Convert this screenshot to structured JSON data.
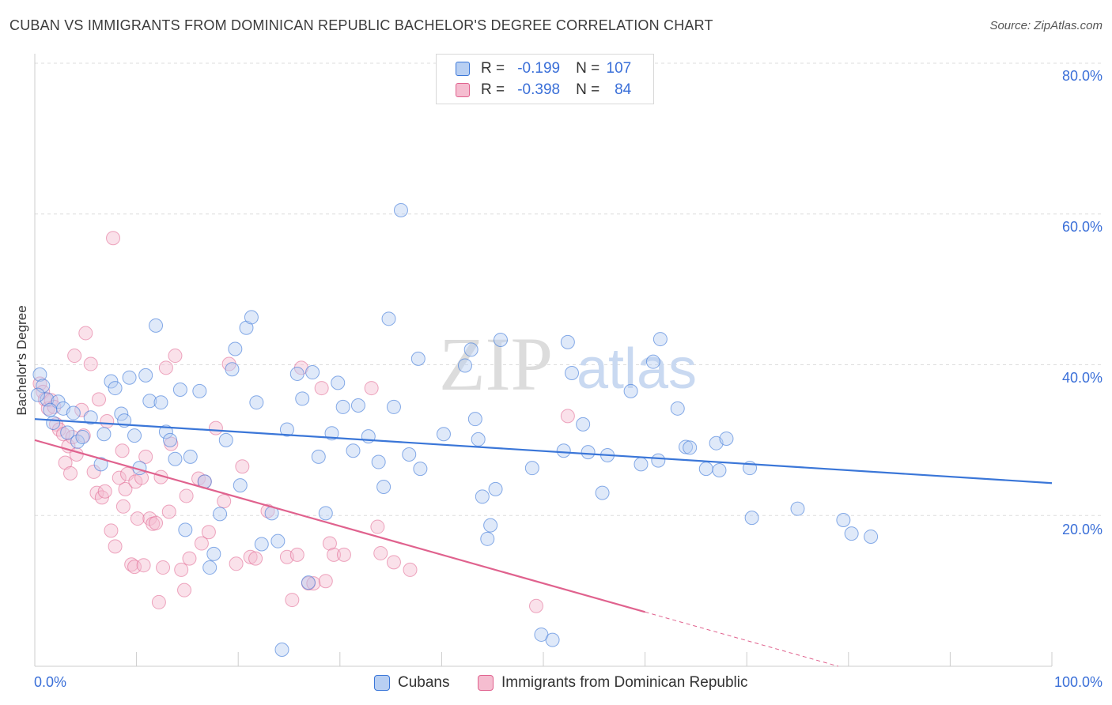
{
  "title": "CUBAN VS IMMIGRANTS FROM DOMINICAN REPUBLIC BACHELOR'S DEGREE CORRELATION CHART",
  "source": "Source: ZipAtlas.com",
  "watermark": {
    "zip": "ZIP",
    "atlas": "atlas"
  },
  "legend": {
    "r_label": "R =",
    "n_label": "N =",
    "series1": {
      "r": "-0.199",
      "n": "107"
    },
    "series2": {
      "r": "-0.398",
      "n": "84"
    }
  },
  "bottom_legend": {
    "series1": "Cubans",
    "series2": "Immigrants from Dominican Republic"
  },
  "colors": {
    "blue": "#3a76d8",
    "blue_fill": "#b8cff2",
    "pink": "#e0628e",
    "pink_fill": "#f5bdd0",
    "axis_text": "#3a6fd8"
  },
  "chart_data": {
    "type": "scatter",
    "title": "CUBAN VS IMMIGRANTS FROM DOMINICAN REPUBLIC BACHELOR'S DEGREE CORRELATION CHART",
    "xlabel": "",
    "ylabel": "Bachelor's Degree",
    "xlim": [
      0,
      100
    ],
    "ylim": [
      0,
      80
    ],
    "y_ticks": [
      {
        "value": 20,
        "label": "20.0%"
      },
      {
        "value": 40,
        "label": "40.0%"
      },
      {
        "value": 60,
        "label": "60.0%"
      },
      {
        "value": 80,
        "label": "80.0%"
      }
    ],
    "x_tick_labels": [
      {
        "value": 0,
        "label": "0.0%"
      },
      {
        "value": 100,
        "label": "100.0%"
      }
    ],
    "grid": true,
    "legend_position": "top-center",
    "series": [
      {
        "name": "Cubans",
        "r": -0.199,
        "n": 107,
        "trend": {
          "x": [
            0,
            100
          ],
          "y": [
            32.8,
            24.3
          ]
        },
        "points": [
          [
            0.5,
            38.7
          ],
          [
            0.8,
            37.2
          ],
          [
            1.2,
            35.4
          ],
          [
            1.8,
            32.3
          ],
          [
            2.3,
            35.1
          ],
          [
            2.8,
            34.2
          ],
          [
            3.2,
            31.0
          ],
          [
            3.8,
            33.6
          ],
          [
            4.2,
            29.8
          ],
          [
            4.7,
            30.4
          ],
          [
            5.5,
            33.0
          ],
          [
            6.5,
            26.8
          ],
          [
            6.8,
            30.8
          ],
          [
            7.5,
            37.8
          ],
          [
            7.9,
            36.9
          ],
          [
            8.5,
            33.5
          ],
          [
            8.8,
            32.6
          ],
          [
            9.3,
            38.3
          ],
          [
            9.8,
            30.6
          ],
          [
            10.3,
            26.3
          ],
          [
            10.9,
            38.6
          ],
          [
            11.3,
            35.2
          ],
          [
            11.9,
            45.2
          ],
          [
            12.4,
            35.0
          ],
          [
            12.9,
            31.1
          ],
          [
            13.3,
            30.0
          ],
          [
            13.8,
            27.5
          ],
          [
            14.3,
            36.7
          ],
          [
            14.8,
            18.1
          ],
          [
            15.3,
            27.8
          ],
          [
            16.2,
            36.5
          ],
          [
            16.7,
            24.5
          ],
          [
            17.2,
            13.1
          ],
          [
            17.6,
            14.9
          ],
          [
            18.2,
            20.2
          ],
          [
            18.8,
            30.0
          ],
          [
            19.4,
            39.4
          ],
          [
            19.7,
            42.1
          ],
          [
            20.2,
            24.0
          ],
          [
            20.8,
            44.9
          ],
          [
            21.3,
            46.3
          ],
          [
            21.8,
            35.0
          ],
          [
            22.3,
            16.2
          ],
          [
            23.3,
            20.3
          ],
          [
            23.9,
            16.6
          ],
          [
            24.3,
            2.2
          ],
          [
            24.8,
            31.4
          ],
          [
            25.8,
            38.8
          ],
          [
            26.3,
            35.5
          ],
          [
            26.9,
            11.1
          ],
          [
            27.3,
            39.0
          ],
          [
            27.9,
            27.8
          ],
          [
            28.6,
            20.3
          ],
          [
            29.2,
            30.9
          ],
          [
            29.8,
            37.6
          ],
          [
            30.3,
            34.4
          ],
          [
            31.3,
            28.6
          ],
          [
            31.8,
            34.6
          ],
          [
            32.8,
            30.5
          ],
          [
            33.8,
            27.1
          ],
          [
            34.3,
            23.8
          ],
          [
            34.8,
            46.1
          ],
          [
            35.3,
            34.4
          ],
          [
            36.0,
            60.5
          ],
          [
            36.8,
            28.1
          ],
          [
            37.7,
            40.8
          ],
          [
            37.9,
            26.2
          ],
          [
            40.2,
            30.8
          ],
          [
            42.3,
            39.9
          ],
          [
            42.9,
            42.0
          ],
          [
            43.3,
            32.8
          ],
          [
            43.6,
            30.1
          ],
          [
            44.0,
            22.5
          ],
          [
            44.5,
            16.9
          ],
          [
            44.8,
            18.7
          ],
          [
            45.3,
            23.5
          ],
          [
            45.8,
            43.3
          ],
          [
            48.9,
            26.3
          ],
          [
            49.8,
            4.2
          ],
          [
            50.9,
            3.5
          ],
          [
            52.0,
            28.6
          ],
          [
            52.4,
            43.0
          ],
          [
            52.8,
            38.9
          ],
          [
            53.9,
            32.1
          ],
          [
            54.4,
            28.4
          ],
          [
            55.8,
            23.0
          ],
          [
            56.3,
            28.0
          ],
          [
            58.6,
            36.5
          ],
          [
            59.6,
            26.8
          ],
          [
            60.8,
            40.4
          ],
          [
            61.3,
            27.3
          ],
          [
            61.5,
            43.4
          ],
          [
            63.2,
            34.2
          ],
          [
            64.0,
            29.1
          ],
          [
            64.4,
            29.0
          ],
          [
            66.0,
            26.2
          ],
          [
            67.0,
            29.6
          ],
          [
            67.3,
            26.0
          ],
          [
            68.0,
            30.2
          ],
          [
            70.3,
            26.3
          ],
          [
            70.5,
            19.7
          ],
          [
            75.0,
            20.9
          ],
          [
            79.5,
            19.4
          ],
          [
            80.3,
            17.6
          ],
          [
            82.2,
            17.2
          ],
          [
            0.3,
            36.0
          ],
          [
            1.5,
            34.0
          ]
        ]
      },
      {
        "name": "Immigrants from Dominican Republic",
        "r": -0.398,
        "n": 84,
        "trend": {
          "x": [
            0,
            60
          ],
          "y": [
            30.0,
            7.2
          ]
        },
        "trend_extension": {
          "x": [
            60,
            79
          ],
          "y": [
            7.2,
            0
          ]
        },
        "points": [
          [
            0.5,
            37.5
          ],
          [
            0.8,
            36.4
          ],
          [
            1.0,
            35.4
          ],
          [
            1.3,
            34.2
          ],
          [
            1.6,
            35.3
          ],
          [
            1.9,
            34.4
          ],
          [
            2.1,
            32.1
          ],
          [
            2.4,
            31.4
          ],
          [
            2.8,
            30.8
          ],
          [
            3.0,
            27.0
          ],
          [
            3.3,
            29.2
          ],
          [
            3.5,
            25.6
          ],
          [
            3.7,
            30.4
          ],
          [
            3.9,
            41.2
          ],
          [
            4.1,
            28.1
          ],
          [
            4.6,
            34.0
          ],
          [
            4.8,
            30.6
          ],
          [
            5.0,
            44.2
          ],
          [
            5.5,
            40.1
          ],
          [
            5.8,
            25.8
          ],
          [
            6.1,
            23.0
          ],
          [
            6.3,
            35.4
          ],
          [
            6.6,
            22.4
          ],
          [
            6.9,
            23.2
          ],
          [
            7.1,
            32.5
          ],
          [
            7.5,
            18.0
          ],
          [
            7.7,
            56.8
          ],
          [
            7.9,
            15.9
          ],
          [
            8.3,
            25.0
          ],
          [
            8.6,
            28.6
          ],
          [
            8.7,
            21.2
          ],
          [
            8.9,
            23.5
          ],
          [
            9.1,
            25.5
          ],
          [
            9.5,
            13.5
          ],
          [
            9.8,
            13.2
          ],
          [
            9.9,
            24.5
          ],
          [
            10.1,
            19.6
          ],
          [
            10.5,
            25.0
          ],
          [
            10.7,
            13.4
          ],
          [
            10.9,
            27.8
          ],
          [
            11.3,
            19.6
          ],
          [
            11.6,
            18.9
          ],
          [
            11.9,
            19.0
          ],
          [
            12.2,
            8.5
          ],
          [
            12.4,
            25.1
          ],
          [
            12.6,
            13.1
          ],
          [
            12.9,
            39.6
          ],
          [
            13.2,
            20.5
          ],
          [
            13.4,
            29.5
          ],
          [
            13.8,
            41.2
          ],
          [
            14.4,
            12.8
          ],
          [
            14.7,
            10.1
          ],
          [
            14.9,
            22.6
          ],
          [
            15.2,
            14.3
          ],
          [
            16.1,
            24.9
          ],
          [
            16.4,
            16.3
          ],
          [
            16.7,
            24.5
          ],
          [
            17.1,
            17.8
          ],
          [
            17.8,
            31.6
          ],
          [
            18.6,
            21.9
          ],
          [
            19.1,
            40.1
          ],
          [
            19.8,
            13.6
          ],
          [
            20.4,
            26.5
          ],
          [
            21.2,
            14.5
          ],
          [
            21.7,
            14.3
          ],
          [
            22.9,
            20.6
          ],
          [
            24.8,
            14.5
          ],
          [
            25.3,
            8.8
          ],
          [
            25.8,
            14.8
          ],
          [
            26.2,
            39.6
          ],
          [
            26.9,
            11.0
          ],
          [
            27.4,
            11.0
          ],
          [
            28.2,
            36.9
          ],
          [
            28.6,
            11.3
          ],
          [
            29.0,
            16.3
          ],
          [
            29.4,
            14.8
          ],
          [
            30.4,
            14.8
          ],
          [
            33.1,
            36.9
          ],
          [
            33.7,
            18.5
          ],
          [
            34.0,
            15.0
          ],
          [
            35.3,
            13.8
          ],
          [
            36.9,
            12.8
          ],
          [
            52.4,
            33.2
          ],
          [
            49.3,
            8.0
          ]
        ]
      }
    ]
  }
}
